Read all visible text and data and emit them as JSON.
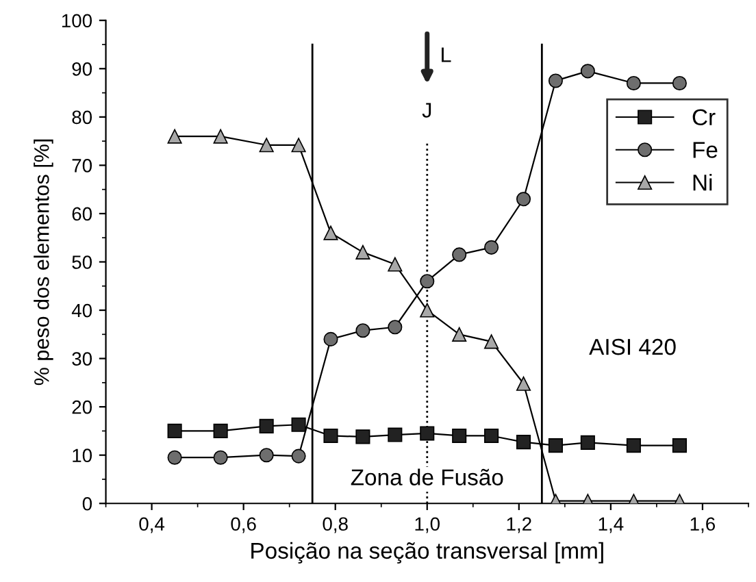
{
  "chart_data": {
    "type": "line",
    "xlabel": "Posição na seção transversal [mm]",
    "ylabel": "% peso dos elementos [%]",
    "x": [
      0.45,
      0.55,
      0.65,
      0.72,
      0.79,
      0.86,
      0.93,
      1.0,
      1.07,
      1.14,
      1.21,
      1.28,
      1.35,
      1.45,
      1.55
    ],
    "series": [
      {
        "name": "Cr",
        "color": "#222222",
        "marker": "square",
        "values": [
          15,
          15,
          16,
          16.3,
          14,
          13.8,
          14.2,
          14.5,
          14,
          14,
          12.7,
          12,
          12.6,
          12,
          12
        ]
      },
      {
        "name": "Fe",
        "color": "#6e6e6e",
        "marker": "circle",
        "values": [
          9.5,
          9.5,
          10,
          9.8,
          34,
          35.8,
          36.5,
          46,
          51.5,
          53,
          63,
          87.5,
          89.5,
          87,
          87
        ]
      },
      {
        "name": "Ni",
        "color": "#a8a8a8",
        "marker": "triangle",
        "values": [
          76,
          76,
          74.2,
          74.2,
          56,
          52,
          49.5,
          40,
          35,
          33.5,
          24.8,
          0.5,
          0.5,
          0.5,
          0.5
        ]
      }
    ],
    "xlim": [
      0.3,
      1.7
    ],
    "ylim": [
      0,
      100
    ],
    "xticks": [
      {
        "value": 0.4,
        "label": "0,4"
      },
      {
        "value": 0.6,
        "label": "0,6"
      },
      {
        "value": 0.8,
        "label": "0,8"
      },
      {
        "value": 1.0,
        "label": "1,0"
      },
      {
        "value": 1.2,
        "label": "1,2"
      },
      {
        "value": 1.4,
        "label": "1,4"
      },
      {
        "value": 1.6,
        "label": "1,6"
      }
    ],
    "yticks": [
      0,
      10,
      20,
      30,
      40,
      50,
      60,
      70,
      80,
      90,
      100
    ],
    "ref_lines": [
      {
        "axis": "x",
        "value": 0.75,
        "color": "#000000",
        "line_style": "solid"
      },
      {
        "axis": "x",
        "value": 1.25,
        "color": "#000000",
        "line_style": "solid"
      },
      {
        "axis": "x",
        "value": 1.0,
        "label": "J",
        "color": "#000000",
        "line_style": "dotted"
      }
    ],
    "annotations": [
      "Zona de Fusão",
      "AISI 420",
      "L"
    ],
    "legend": "top right",
    "grid": false,
    "line_style": "solid"
  }
}
